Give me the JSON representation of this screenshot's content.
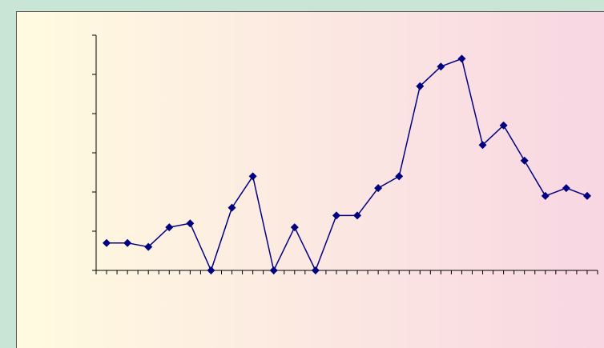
{
  "chart_data": {
    "type": "line",
    "categories": [
      null,
      null,
      null,
      null,
      null,
      null,
      null,
      null,
      null,
      null,
      null,
      null,
      null,
      null,
      null,
      null,
      null,
      null,
      null,
      null,
      null,
      null,
      null,
      null
    ],
    "series": [
      {
        "color": "#000080",
        "values": [
          0.7,
          0.7,
          0.6,
          1.1,
          1.2,
          0,
          1.6,
          2.4,
          0,
          1.1,
          0,
          1.4,
          1.4,
          2.1,
          2.4,
          4.7,
          5.2,
          5.4,
          3.2,
          3.7,
          2.8,
          1.9,
          2.1,
          1.9
        ]
      }
    ],
    "ylim": [
      0,
      6
    ],
    "yticks": [
      0,
      1,
      2,
      3,
      4,
      5,
      6
    ]
  }
}
